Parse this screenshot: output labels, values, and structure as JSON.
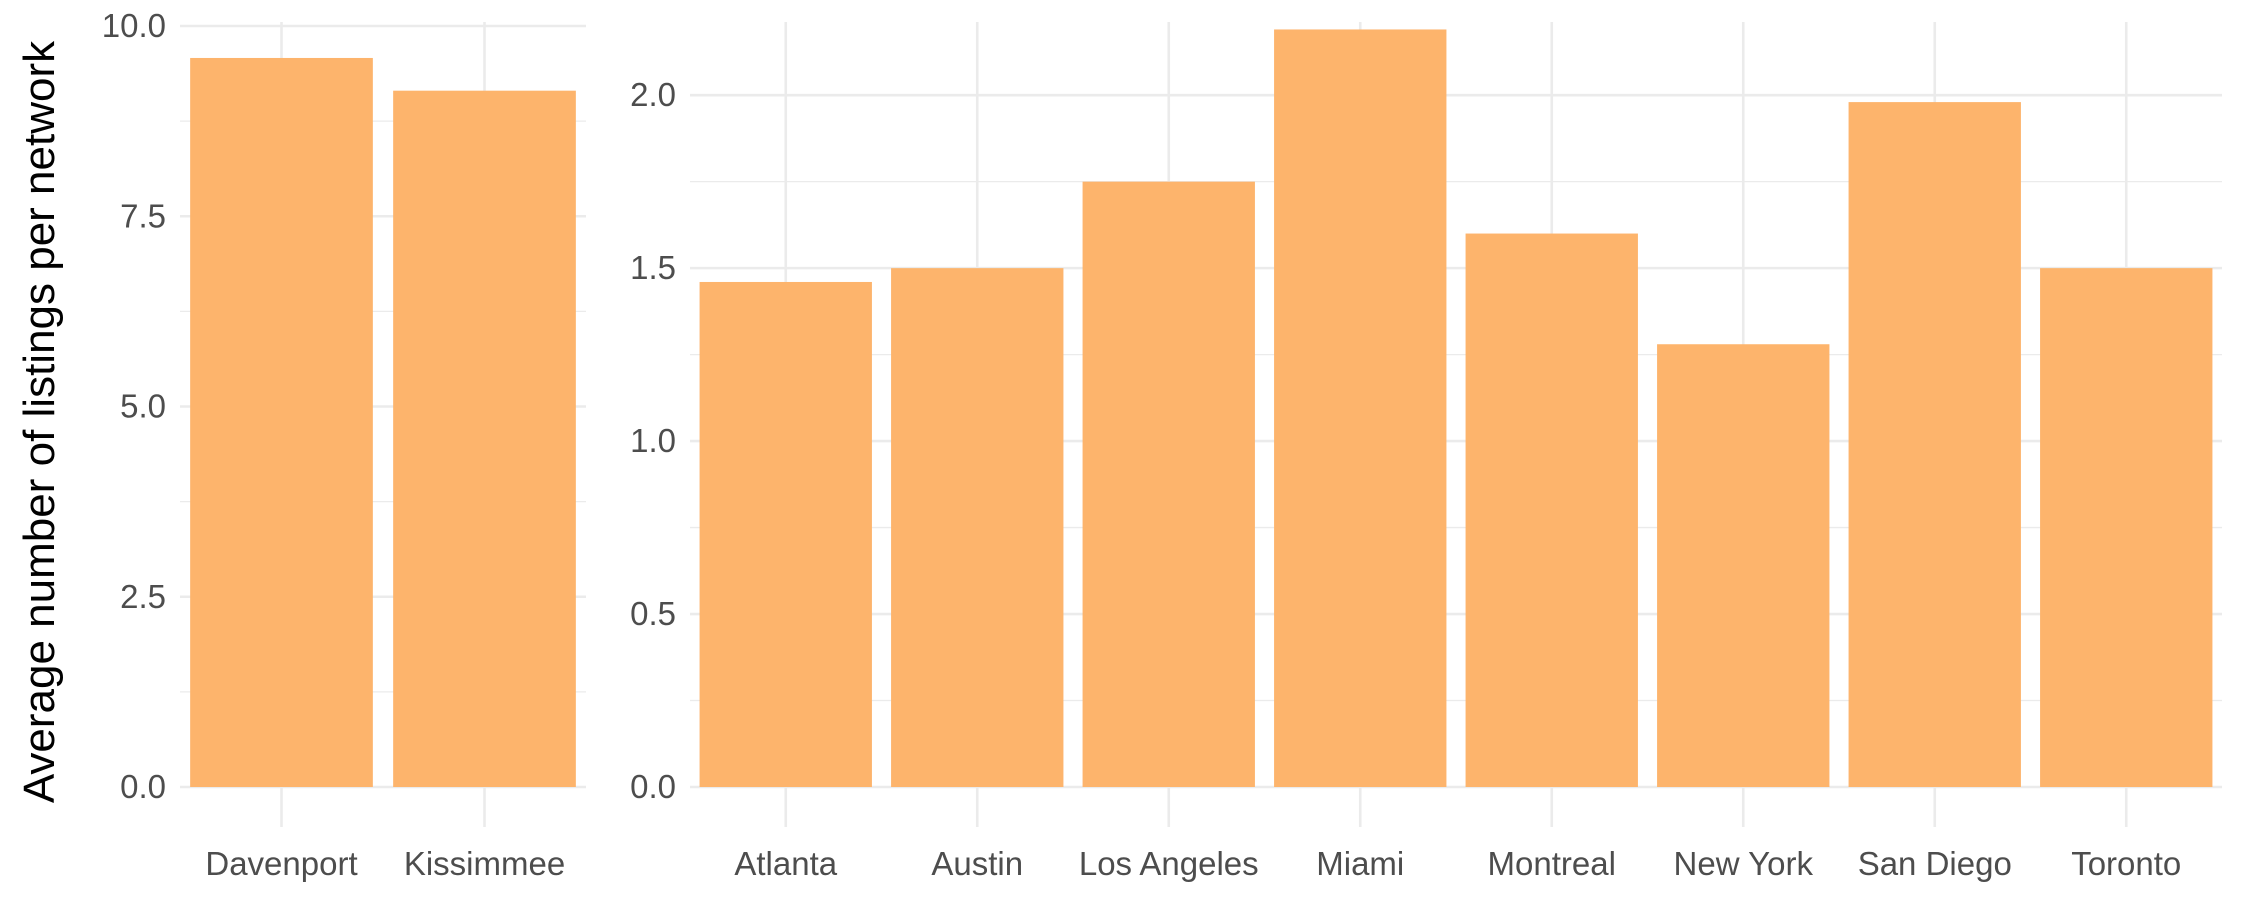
{
  "chart_data": [
    {
      "type": "bar",
      "ylabel": "Average number of listings per network",
      "xlabel": "",
      "categories": [
        "Davenport",
        "Kissimmee"
      ],
      "values": [
        9.58,
        9.15
      ],
      "ylim": [
        0,
        10
      ],
      "yticks": [
        0.0,
        2.5,
        5.0,
        7.5,
        10.0
      ],
      "ytick_labels": [
        "0.0",
        "2.5",
        "5.0",
        "7.5",
        "10.0"
      ],
      "grid": true,
      "bar_color": "#fdb46c"
    },
    {
      "type": "bar",
      "xlabel": "",
      "categories": [
        "Atlanta",
        "Austin",
        "Los Angeles",
        "Miami",
        "Montreal",
        "New York",
        "San Diego",
        "Toronto"
      ],
      "values": [
        1.46,
        1.5,
        1.75,
        2.19,
        1.6,
        1.28,
        1.98,
        1.5
      ],
      "ylim": [
        0,
        2.2
      ],
      "yticks": [
        0.0,
        0.5,
        1.0,
        1.5,
        2.0
      ],
      "ytick_labels": [
        "0.0",
        "0.5",
        "1.0",
        "1.5",
        "2.0"
      ],
      "grid": true,
      "bar_color": "#fdb46c"
    }
  ]
}
